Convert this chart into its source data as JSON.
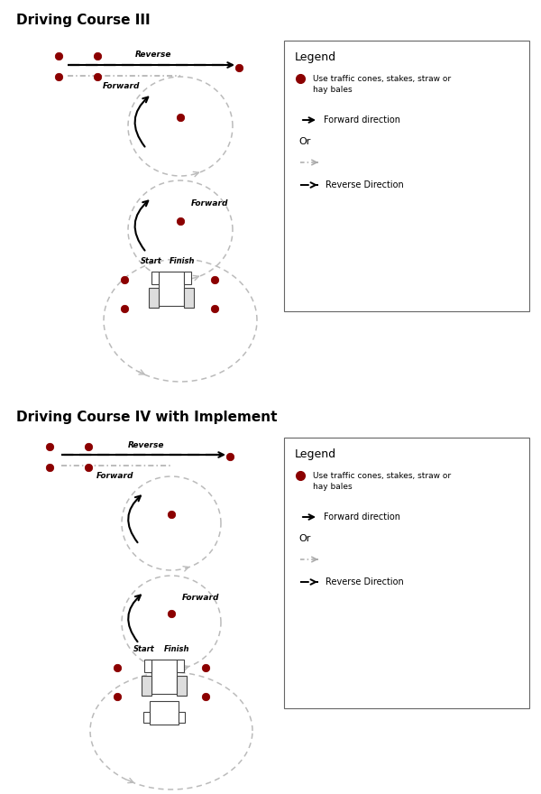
{
  "title1": "Driving Course III",
  "title2": "Driving Course IV with Implement",
  "cone_color": "#8B0000",
  "cone_edge": "#8B0000",
  "arrow_forward_color": "#111111",
  "arrow_reverse_color": "#111111",
  "arrow_gray_color": "#aaaaaa",
  "circle_color": "#bbbbbb",
  "legend_title": "Legend",
  "legend_cone_text": "Use traffic cones, stakes, straw or\nhay bales",
  "legend_forward_text": "Forward direction",
  "legend_or_text": "Or",
  "legend_reverse_text": "Reverse Direction",
  "background": "#ffffff"
}
